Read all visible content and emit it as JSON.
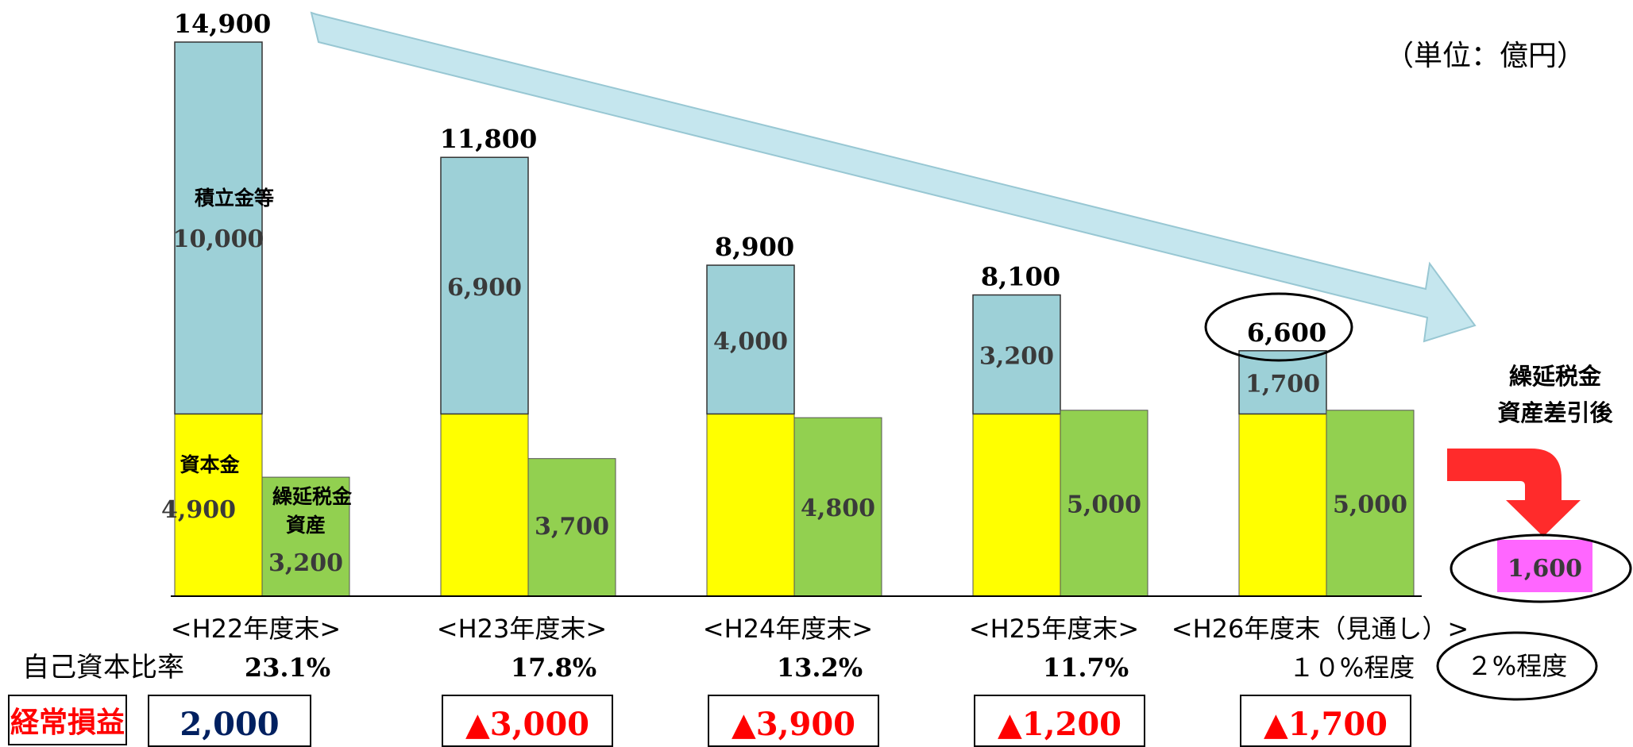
{
  "unit_label": "（単位：億円）",
  "colors": {
    "reserve": "#9dd0d7",
    "capital": "#ffff00",
    "dta": "#92d050",
    "after": "#ff66ff",
    "arrow": "#ff2b2b",
    "loss": "#ff0000",
    "profit": "#002060",
    "trend_arrow": "#c5e6ee"
  },
  "chart_data": {
    "type": "bar",
    "categories": [
      "<H22年度末>",
      "<H23年度末>",
      "<H24年度末>",
      "<H25年度末>",
      "<H26年度末（見通し）>"
    ],
    "stack_series": [
      {
        "name": "資本金",
        "values": [
          4900,
          4900,
          4900,
          4900,
          4900
        ]
      },
      {
        "name": "積立金等",
        "values": [
          10000,
          6900,
          4000,
          3200,
          1700
        ]
      }
    ],
    "stack_totals": [
      14900,
      11800,
      8900,
      8100,
      6600
    ],
    "dta_series": {
      "name": "繰延税金資産",
      "values": [
        3200,
        3700,
        4800,
        5000,
        5000
      ]
    },
    "after_deduction": {
      "label": "繰延税金\n資産差引後",
      "value": 1600
    },
    "ylim": [
      0,
      15000
    ],
    "title": "",
    "xlabel": "",
    "ylabel": ""
  },
  "labels": {
    "reserve": "積立金等",
    "capital": "資本金",
    "dta_line1": "繰延税金",
    "dta_line2": "資産",
    "after_line1": "繰延税金",
    "after_line2": "資産差引後"
  },
  "display": {
    "totals": [
      "14,900",
      "11,800",
      "8,900",
      "8,100",
      "6,600"
    ],
    "reserve_values": [
      "10,000",
      "6,900",
      "4,000",
      "3,200",
      "1,700"
    ],
    "capital_value": "4,900",
    "dta_values": [
      "3,200",
      "3,700",
      "4,800",
      "5,000",
      "5,000"
    ],
    "after_value": "1,600"
  },
  "ratio": {
    "label": "自己資本比率",
    "values": [
      "23.1%",
      "17.8%",
      "13.2%",
      "11.7%",
      "１０%程度"
    ],
    "after": "２%程度"
  },
  "profit": {
    "label": "経常損益",
    "values": [
      "2,000",
      "▲3,000",
      "▲3,900",
      "▲1,200",
      "▲1,700"
    ],
    "negative": [
      false,
      true,
      true,
      true,
      true
    ]
  }
}
